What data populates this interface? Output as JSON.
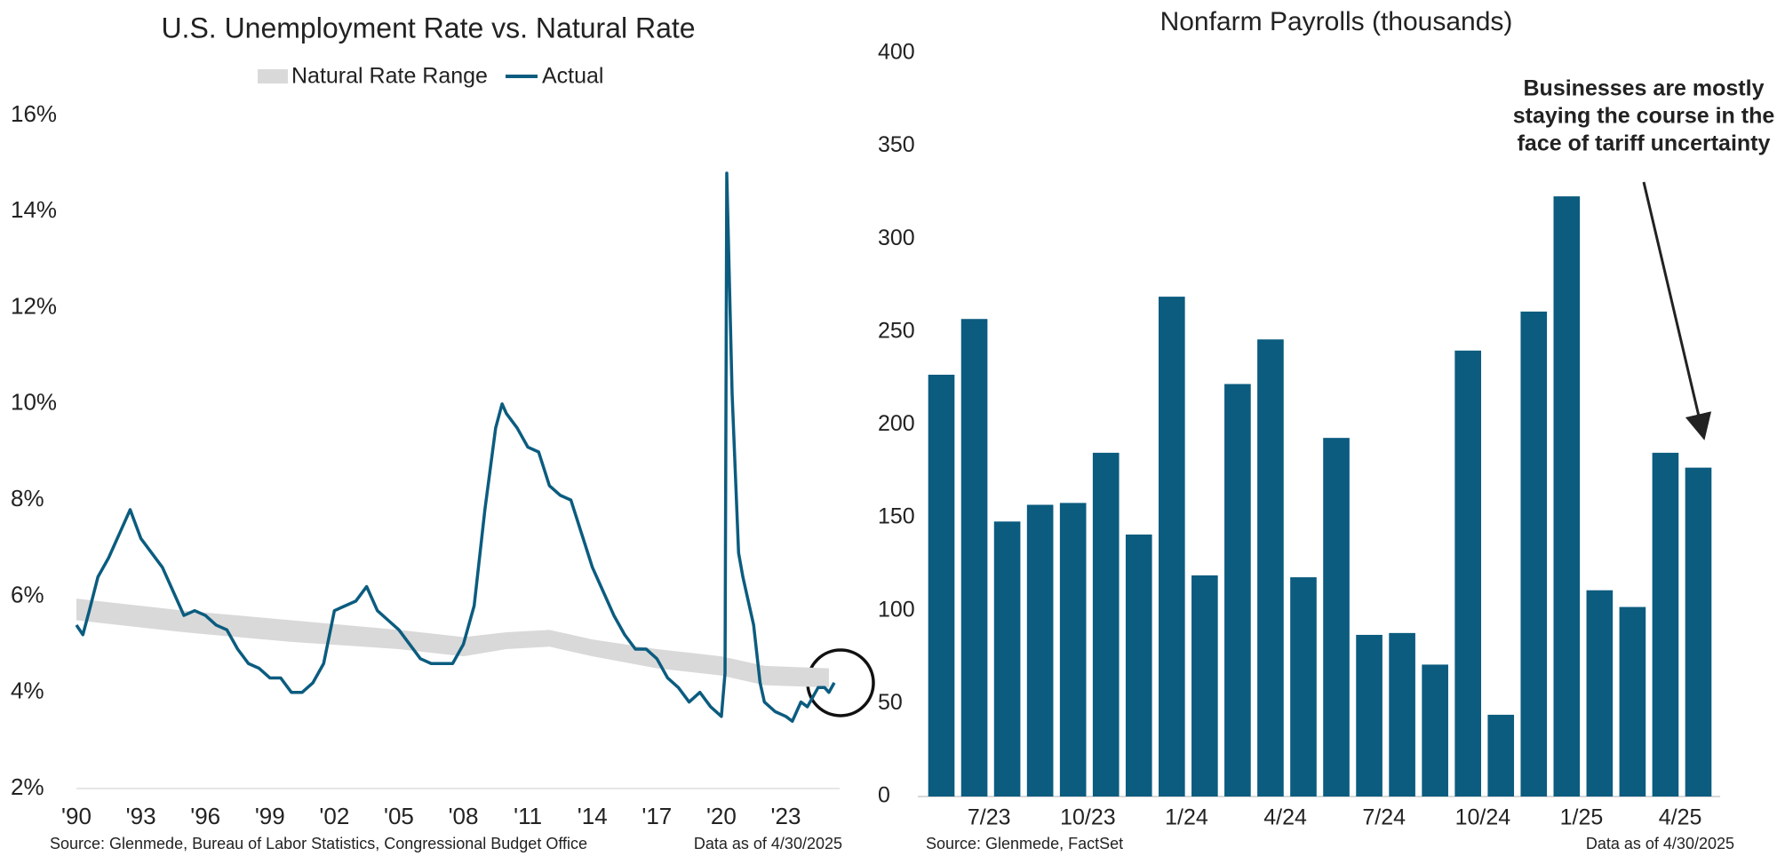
{
  "chart_data": [
    {
      "type": "line",
      "title": "U.S. Unemployment Rate vs. Natural Rate",
      "source": "Source: Glenmede, Bureau of Labor Statistics, Congressional Budget Office",
      "note": "Data as of 4/30/2025",
      "xlim": [
        1990,
        2025.5
      ],
      "xticks": [
        {
          "value": 1990,
          "label": "'90"
        },
        {
          "value": 1993,
          "label": "'93"
        },
        {
          "value": 1996,
          "label": "'96"
        },
        {
          "value": 1999,
          "label": "'99"
        },
        {
          "value": 2002,
          "label": "'02"
        },
        {
          "value": 2005,
          "label": "'05"
        },
        {
          "value": 2008,
          "label": "'08"
        },
        {
          "value": 2011,
          "label": "'11"
        },
        {
          "value": 2014,
          "label": "'14"
        },
        {
          "value": 2017,
          "label": "'17"
        },
        {
          "value": 2020,
          "label": "'20"
        },
        {
          "value": 2023,
          "label": "'23"
        }
      ],
      "ylim": [
        2,
        16
      ],
      "yticks": [
        {
          "value": 2,
          "label": "2%"
        },
        {
          "value": 4,
          "label": "4%"
        },
        {
          "value": 6,
          "label": "6%"
        },
        {
          "value": 8,
          "label": "8%"
        },
        {
          "value": 10,
          "label": "10%"
        },
        {
          "value": 12,
          "label": "12%"
        },
        {
          "value": 14,
          "label": "14%"
        },
        {
          "value": 16,
          "label": "16%"
        }
      ],
      "series": [
        {
          "name": "Natural Rate Range",
          "color": "#d9d9d9",
          "x": [
            1990,
            1995,
            2000,
            2005,
            2008,
            2010,
            2012,
            2014,
            2017,
            2020,
            2022,
            2025
          ],
          "high": [
            5.95,
            5.7,
            5.5,
            5.3,
            5.15,
            5.25,
            5.3,
            5.1,
            4.9,
            4.75,
            4.55,
            4.5
          ],
          "low": [
            5.5,
            5.25,
            5.05,
            4.9,
            4.75,
            4.9,
            4.95,
            4.75,
            4.5,
            4.35,
            4.15,
            4.1
          ]
        },
        {
          "name": "Actual",
          "color": "#0b5c7f",
          "x": [
            1990.0,
            1990.3,
            1990.6,
            1991.0,
            1991.5,
            1992.0,
            1992.5,
            1993.0,
            1993.5,
            1994.0,
            1994.5,
            1995.0,
            1995.5,
            1996.0,
            1996.5,
            1997.0,
            1997.5,
            1998.0,
            1998.5,
            1999.0,
            1999.5,
            2000.0,
            2000.5,
            2001.0,
            2001.5,
            2002.0,
            2002.5,
            2003.0,
            2003.5,
            2004.0,
            2004.5,
            2005.0,
            2005.5,
            2006.0,
            2006.5,
            2007.0,
            2007.5,
            2008.0,
            2008.5,
            2009.0,
            2009.5,
            2009.8,
            2010.0,
            2010.5,
            2011.0,
            2011.5,
            2012.0,
            2012.5,
            2013.0,
            2013.5,
            2014.0,
            2014.5,
            2015.0,
            2015.5,
            2016.0,
            2016.5,
            2017.0,
            2017.5,
            2018.0,
            2018.5,
            2019.0,
            2019.5,
            2020.0,
            2020.17,
            2020.25,
            2020.5,
            2020.8,
            2021.0,
            2021.5,
            2021.8,
            2022.0,
            2022.5,
            2023.0,
            2023.3,
            2023.7,
            2024.0,
            2024.5,
            2024.8,
            2025.0,
            2025.25
          ],
          "values": [
            5.4,
            5.2,
            5.7,
            6.4,
            6.8,
            7.3,
            7.8,
            7.2,
            6.9,
            6.6,
            6.1,
            5.6,
            5.7,
            5.6,
            5.4,
            5.3,
            4.9,
            4.6,
            4.5,
            4.3,
            4.3,
            4.0,
            4.0,
            4.2,
            4.6,
            5.7,
            5.8,
            5.9,
            6.2,
            5.7,
            5.5,
            5.3,
            5.0,
            4.7,
            4.6,
            4.6,
            4.6,
            5.0,
            5.8,
            7.8,
            9.5,
            10.0,
            9.8,
            9.5,
            9.1,
            9.0,
            8.3,
            8.1,
            8.0,
            7.3,
            6.6,
            6.1,
            5.6,
            5.2,
            4.9,
            4.9,
            4.7,
            4.3,
            4.1,
            3.8,
            4.0,
            3.7,
            3.5,
            4.4,
            14.8,
            10.2,
            6.9,
            6.4,
            5.4,
            4.2,
            3.8,
            3.6,
            3.5,
            3.4,
            3.8,
            3.7,
            4.1,
            4.1,
            4.0,
            4.2
          ]
        }
      ]
    },
    {
      "type": "bar",
      "title": "Nonfarm Payrolls (thousands)",
      "source": "Source: Glenmede, FactSet",
      "note": "Data as of 4/30/2025",
      "annotation": [
        "Businesses are mostly",
        "staying the course in the",
        "face of tariff uncertainty"
      ],
      "color": "#0b5c7f",
      "categories": [
        null,
        "7/23",
        null,
        null,
        "10/23",
        null,
        null,
        "1/24",
        null,
        null,
        "4/24",
        null,
        null,
        "7/24",
        null,
        null,
        "10/24",
        null,
        null,
        "1/25",
        null,
        null,
        "4/25",
        null
      ],
      "values": [
        227,
        257,
        148,
        157,
        158,
        185,
        141,
        269,
        119,
        222,
        246,
        118,
        193,
        87,
        88,
        71,
        240,
        44,
        261,
        323,
        111,
        102,
        185,
        177
      ],
      "ylim": [
        0,
        400
      ],
      "yticks": [
        0,
        50,
        100,
        150,
        200,
        250,
        300,
        350,
        400
      ]
    }
  ]
}
